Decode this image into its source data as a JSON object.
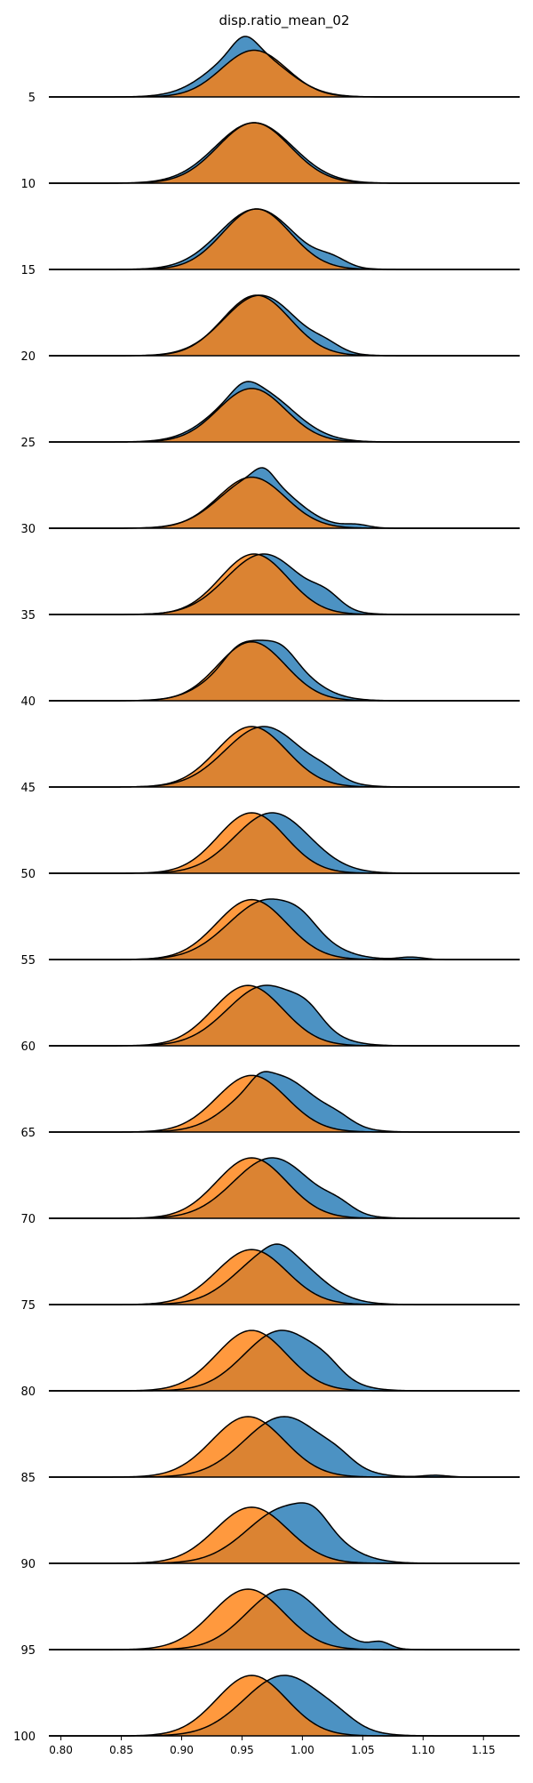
{
  "chart_data": {
    "type": "area",
    "title": "disp.ratio_mean_02",
    "xlabel": "",
    "ylabel": "",
    "xlim": [
      0.79,
      1.18
    ],
    "x_ticks": [
      "0.80",
      "0.85",
      "0.90",
      "0.95",
      "1.00",
      "1.05",
      "1.10",
      "1.15"
    ],
    "row_labels": [
      "5",
      "10",
      "15",
      "20",
      "25",
      "30",
      "35",
      "40",
      "45",
      "50",
      "55",
      "60",
      "65",
      "70",
      "75",
      "80",
      "85",
      "90",
      "95",
      "100"
    ],
    "grid": false,
    "legend": "none",
    "colors": {
      "series_back": "#1f77b4",
      "series_front": "#ff7f0e",
      "outline": "#000000"
    },
    "series": [
      {
        "rows": [
          {
            "row": "5",
            "mean": 0.955,
            "sd": 0.03,
            "bumps": [
              [
                0.952,
                0.3,
                0.01
              ]
            ]
          },
          {
            "row": "10",
            "mean": 0.96,
            "sd": 0.032,
            "bumps": []
          },
          {
            "row": "15",
            "mean": 0.962,
            "sd": 0.031,
            "bumps": [
              [
                1.025,
                0.12,
                0.012
              ]
            ]
          },
          {
            "row": "20",
            "mean": 0.965,
            "sd": 0.03,
            "bumps": [
              [
                1.02,
                0.1,
                0.012
              ]
            ]
          },
          {
            "row": "25",
            "mean": 0.96,
            "sd": 0.031,
            "bumps": [
              [
                0.952,
                0.15,
                0.01
              ]
            ]
          },
          {
            "row": "30",
            "mean": 0.962,
            "sd": 0.03,
            "bumps": [
              [
                0.968,
                0.2,
                0.008
              ],
              [
                1.045,
                0.06,
                0.01
              ]
            ]
          },
          {
            "row": "35",
            "mean": 0.968,
            "sd": 0.031,
            "bumps": [
              [
                1.02,
                0.18,
                0.012
              ]
            ]
          },
          {
            "row": "40",
            "mean": 0.965,
            "sd": 0.031,
            "bumps": [
              [
                0.945,
                0.1,
                0.01
              ],
              [
                0.985,
                0.1,
                0.01
              ]
            ]
          },
          {
            "row": "45",
            "mean": 0.968,
            "sd": 0.032,
            "bumps": [
              [
                1.02,
                0.1,
                0.012
              ]
            ]
          },
          {
            "row": "50",
            "mean": 0.975,
            "sd": 0.031,
            "bumps": []
          },
          {
            "row": "55",
            "mean": 0.972,
            "sd": 0.033,
            "bumps": [
              [
                1.0,
                0.12,
                0.012
              ],
              [
                1.09,
                0.04,
                0.01
              ]
            ]
          },
          {
            "row": "60",
            "mean": 0.97,
            "sd": 0.032,
            "bumps": [
              [
                1.005,
                0.18,
                0.012
              ]
            ]
          },
          {
            "row": "65",
            "mean": 0.978,
            "sd": 0.032,
            "bumps": [
              [
                0.965,
                0.12,
                0.008
              ],
              [
                1.03,
                0.1,
                0.012
              ]
            ]
          },
          {
            "row": "70",
            "mean": 0.975,
            "sd": 0.032,
            "bumps": [
              [
                1.03,
                0.12,
                0.012
              ]
            ]
          },
          {
            "row": "75",
            "mean": 0.978,
            "sd": 0.031,
            "bumps": [
              [
                0.98,
                0.1,
                0.01
              ]
            ]
          },
          {
            "row": "80",
            "mean": 0.983,
            "sd": 0.031,
            "bumps": [
              [
                1.02,
                0.12,
                0.012
              ]
            ]
          },
          {
            "row": "85",
            "mean": 0.985,
            "sd": 0.033,
            "bumps": [
              [
                1.03,
                0.1,
                0.012
              ],
              [
                1.11,
                0.03,
                0.01
              ]
            ]
          },
          {
            "row": "90",
            "mean": 0.988,
            "sd": 0.033,
            "bumps": [
              [
                1.01,
                0.2,
                0.012
              ]
            ]
          },
          {
            "row": "95",
            "mean": 0.985,
            "sd": 0.031,
            "bumps": [
              [
                1.065,
                0.1,
                0.008
              ]
            ]
          },
          {
            "row": "100",
            "mean": 0.985,
            "sd": 0.033,
            "bumps": [
              [
                1.03,
                0.08,
                0.014
              ]
            ]
          }
        ]
      },
      {
        "rows": [
          {
            "row": "5",
            "mean": 0.96,
            "sd": 0.027,
            "bumps": []
          },
          {
            "row": "10",
            "mean": 0.96,
            "sd": 0.03,
            "bumps": []
          },
          {
            "row": "15",
            "mean": 0.962,
            "sd": 0.028,
            "bumps": []
          },
          {
            "row": "20",
            "mean": 0.962,
            "sd": 0.028,
            "bumps": []
          },
          {
            "row": "25",
            "mean": 0.958,
            "sd": 0.028,
            "bumps": []
          },
          {
            "row": "30",
            "mean": 0.958,
            "sd": 0.028,
            "bumps": []
          },
          {
            "row": "35",
            "mean": 0.96,
            "sd": 0.028,
            "bumps": []
          },
          {
            "row": "40",
            "mean": 0.958,
            "sd": 0.028,
            "bumps": []
          },
          {
            "row": "45",
            "mean": 0.958,
            "sd": 0.029,
            "bumps": []
          },
          {
            "row": "50",
            "mean": 0.958,
            "sd": 0.028,
            "bumps": []
          },
          {
            "row": "55",
            "mean": 0.958,
            "sd": 0.029,
            "bumps": []
          },
          {
            "row": "60",
            "mean": 0.955,
            "sd": 0.029,
            "bumps": []
          },
          {
            "row": "65",
            "mean": 0.958,
            "sd": 0.029,
            "bumps": []
          },
          {
            "row": "70",
            "mean": 0.958,
            "sd": 0.029,
            "bumps": []
          },
          {
            "row": "75",
            "mean": 0.958,
            "sd": 0.029,
            "bumps": []
          },
          {
            "row": "80",
            "mean": 0.958,
            "sd": 0.029,
            "bumps": []
          },
          {
            "row": "85",
            "mean": 0.955,
            "sd": 0.03,
            "bumps": []
          },
          {
            "row": "90",
            "mean": 0.958,
            "sd": 0.03,
            "bumps": []
          },
          {
            "row": "95",
            "mean": 0.955,
            "sd": 0.03,
            "bumps": []
          },
          {
            "row": "100",
            "mean": 0.958,
            "sd": 0.029,
            "bumps": []
          }
        ]
      }
    ]
  }
}
